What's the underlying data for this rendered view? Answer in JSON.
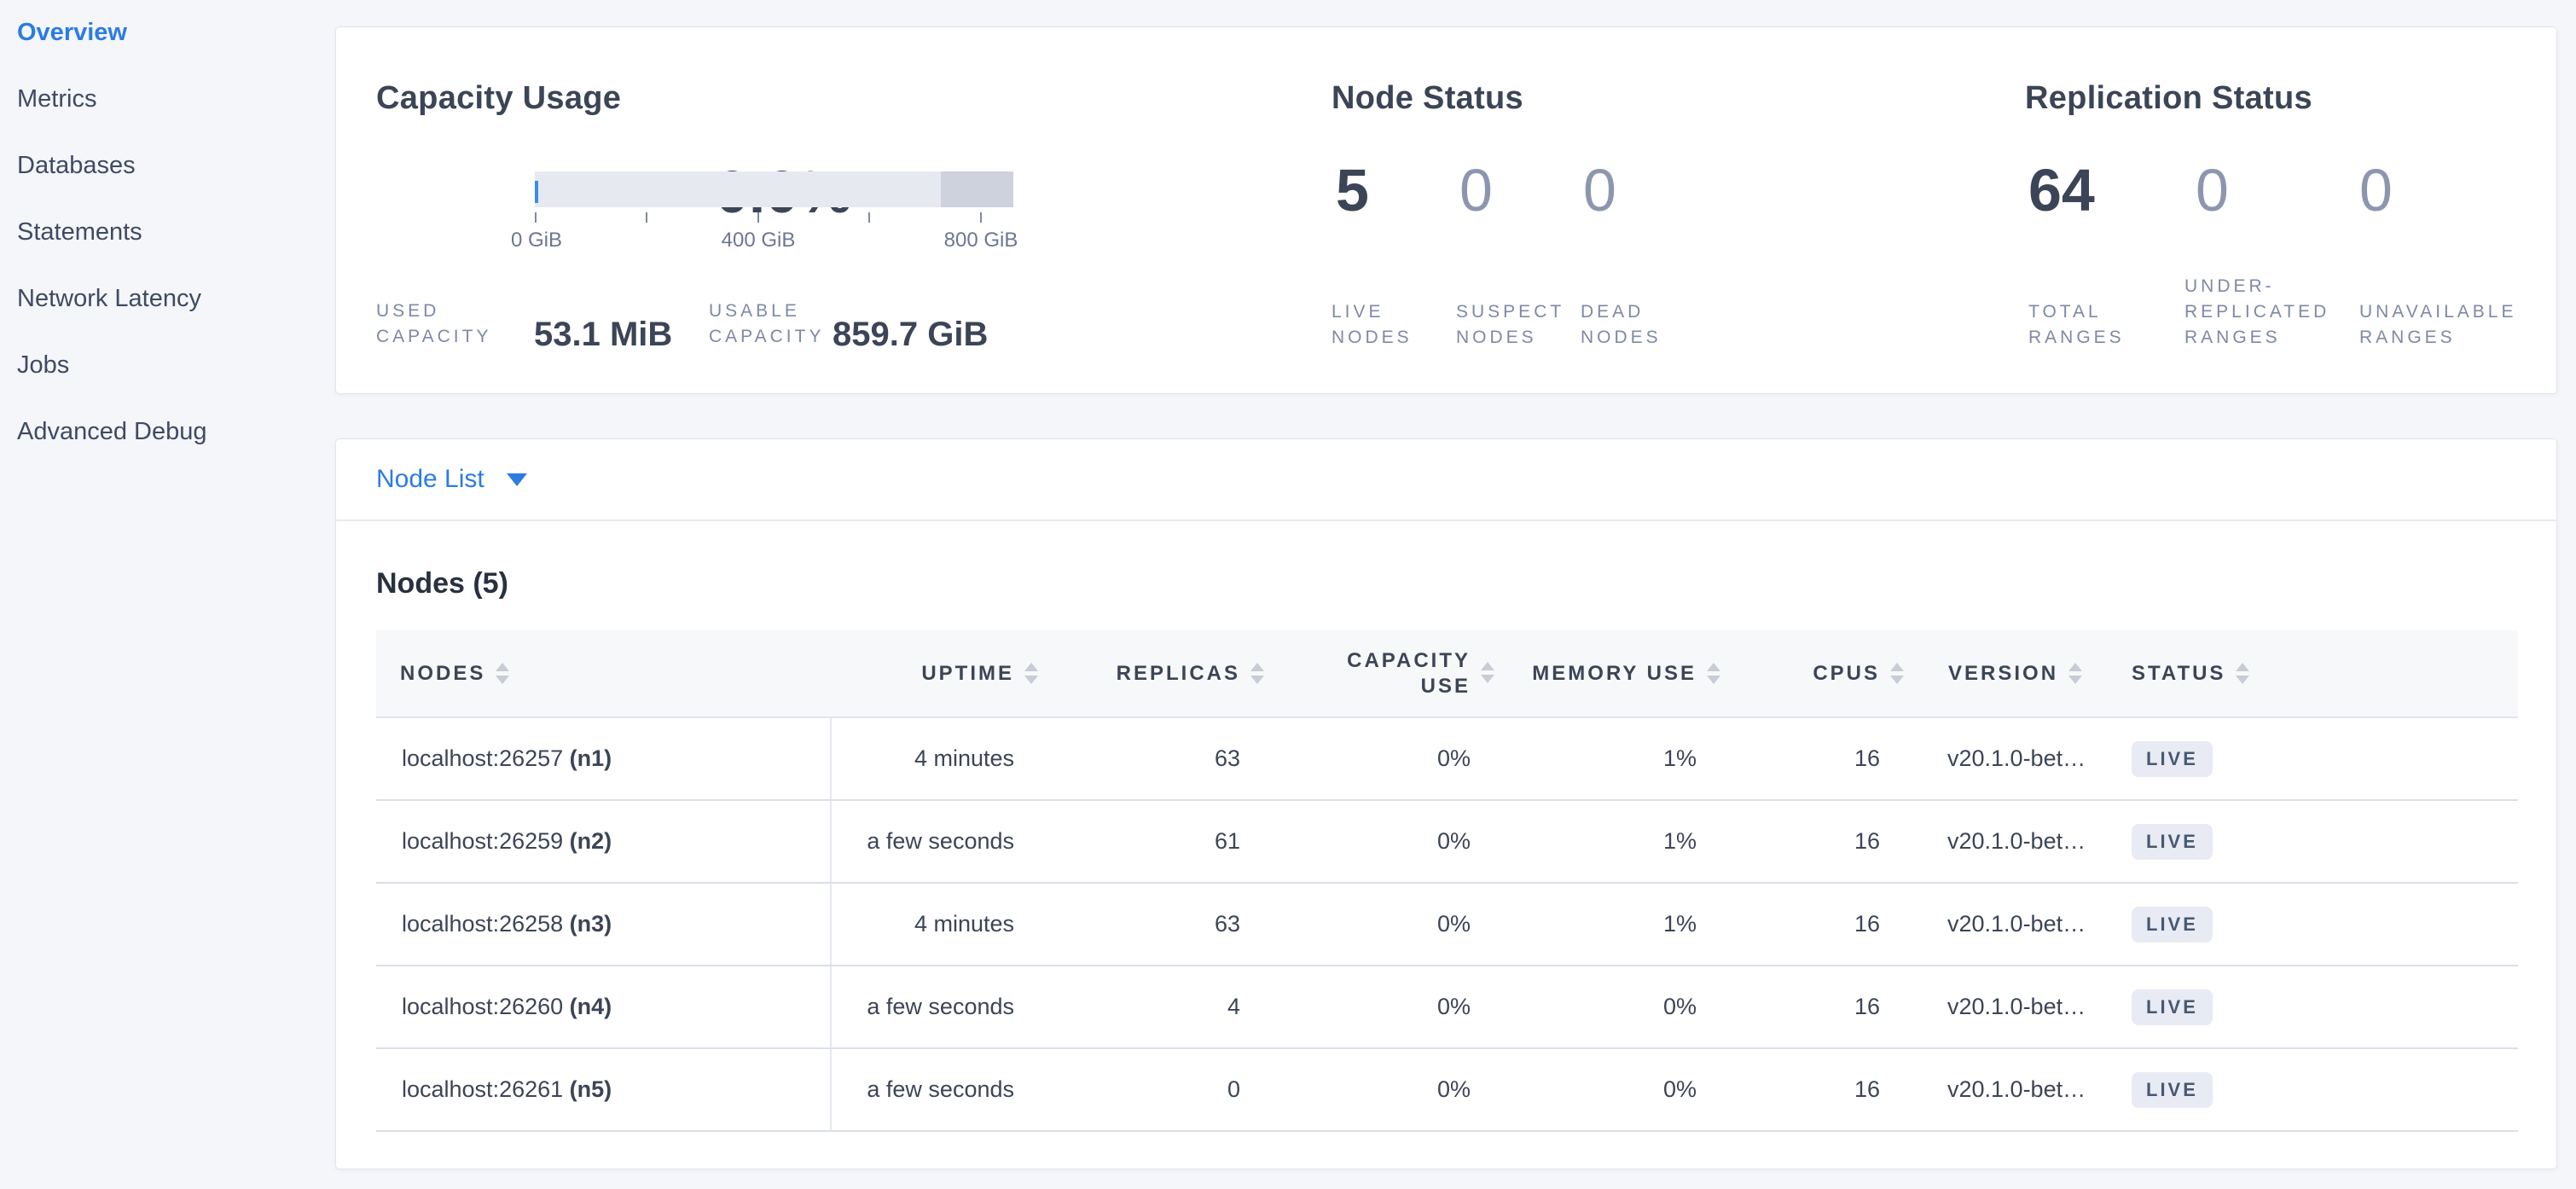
{
  "colors": {
    "accent_blue": "#2b7ce2",
    "dark_text": "#3b4557",
    "muted_text": "#8c96af",
    "label_text": "#7e89a6",
    "live_badge_bg": "#e8ebf3",
    "badge_text": "#475872",
    "gauge_track": "#e6e9f0",
    "gauge_band": "#cdd2dd",
    "gauge_marker": "#3a8bf0",
    "page_bg": "#f4f6fa",
    "header_bg": "#f7f8f9"
  },
  "sidebar": {
    "items": [
      {
        "label": "Overview",
        "active": true
      },
      {
        "label": "Metrics",
        "active": false
      },
      {
        "label": "Databases",
        "active": false
      },
      {
        "label": "Statements",
        "active": false
      },
      {
        "label": "Network Latency",
        "active": false
      },
      {
        "label": "Jobs",
        "active": false
      },
      {
        "label": "Advanced Debug",
        "active": false
      }
    ]
  },
  "capacity": {
    "title": "Capacity Usage",
    "percent": "0.0%",
    "gauge": {
      "tick_labels": [
        "0 GiB",
        "400 GiB",
        "800 GiB"
      ],
      "min_gib": 0,
      "max_gib": 860,
      "dark_band_start_gib": 730,
      "used_marker_gib": 0
    },
    "stats": [
      {
        "label_lines": [
          "USED",
          "CAPACITY"
        ],
        "value": "53.1 MiB"
      },
      {
        "label_lines": [
          "USABLE",
          "CAPACITY"
        ],
        "value": "859.7 GiB"
      }
    ]
  },
  "node_status": {
    "title": "Node Status",
    "metrics": [
      {
        "value": "5",
        "label_lines": [
          "LIVE",
          "NODES"
        ],
        "emphasized": true
      },
      {
        "value": "0",
        "label_lines": [
          "SUSPECT",
          "NODES"
        ],
        "emphasized": false
      },
      {
        "value": "0",
        "label_lines": [
          "DEAD",
          "NODES"
        ],
        "emphasized": false
      }
    ]
  },
  "replication": {
    "title": "Replication Status",
    "metrics": [
      {
        "value": "64",
        "label_lines": [
          "TOTAL",
          "RANGES"
        ],
        "emphasized": true
      },
      {
        "value": "0",
        "label_lines": [
          "UNDER-",
          "REPLICATED",
          "RANGES"
        ],
        "emphasized": false
      },
      {
        "value": "0",
        "label_lines": [
          "UNAVAILABLE",
          "RANGES"
        ],
        "emphasized": false
      }
    ]
  },
  "node_list": {
    "label": "Node List"
  },
  "nodes_table": {
    "title": "Nodes (5)",
    "columns": [
      {
        "label": "NODES",
        "align": "left"
      },
      {
        "label": "UPTIME",
        "align": "right"
      },
      {
        "label": "REPLICAS",
        "align": "right"
      },
      {
        "label": "CAPACITY USE",
        "align": "right",
        "wrap": true
      },
      {
        "label": "MEMORY USE",
        "align": "right"
      },
      {
        "label": "CPUS",
        "align": "right"
      },
      {
        "label": "VERSION",
        "align": "left"
      },
      {
        "label": "STATUS",
        "align": "left"
      }
    ],
    "rows": [
      {
        "node": "localhost:26257",
        "id": "(n1)",
        "uptime": "4 minutes",
        "replicas": "63",
        "capacity_use": "0%",
        "memory_use": "1%",
        "cpus": "16",
        "version": "v20.1.0-bet…",
        "status": "LIVE"
      },
      {
        "node": "localhost:26259",
        "id": "(n2)",
        "uptime": "a few seconds",
        "replicas": "61",
        "capacity_use": "0%",
        "memory_use": "1%",
        "cpus": "16",
        "version": "v20.1.0-bet…",
        "status": "LIVE"
      },
      {
        "node": "localhost:26258",
        "id": "(n3)",
        "uptime": "4 minutes",
        "replicas": "63",
        "capacity_use": "0%",
        "memory_use": "1%",
        "cpus": "16",
        "version": "v20.1.0-bet…",
        "status": "LIVE"
      },
      {
        "node": "localhost:26260",
        "id": "(n4)",
        "uptime": "a few seconds",
        "replicas": "4",
        "capacity_use": "0%",
        "memory_use": "0%",
        "cpus": "16",
        "version": "v20.1.0-bet…",
        "status": "LIVE"
      },
      {
        "node": "localhost:26261",
        "id": "(n5)",
        "uptime": "a few seconds",
        "replicas": "0",
        "capacity_use": "0%",
        "memory_use": "0%",
        "cpus": "16",
        "version": "v20.1.0-bet…",
        "status": "LIVE"
      }
    ]
  }
}
